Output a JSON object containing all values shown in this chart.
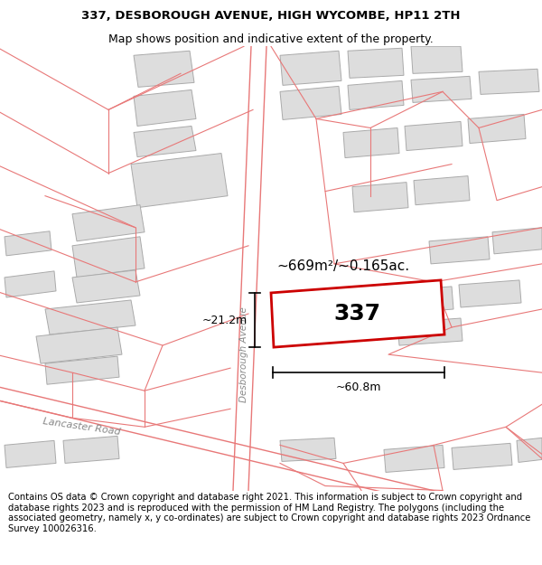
{
  "title_line1": "337, DESBOROUGH AVENUE, HIGH WYCOMBE, HP11 2TH",
  "title_line2": "Map shows position and indicative extent of the property.",
  "footer_text": "Contains OS data © Crown copyright and database right 2021. This information is subject to Crown copyright and database rights 2023 and is reproduced with the permission of HM Land Registry. The polygons (including the associated geometry, namely x, y co-ordinates) are subject to Crown copyright and database rights 2023 Ordnance Survey 100026316.",
  "map_bg": "#ffffff",
  "building_outline_color": "#aaaaaa",
  "building_fill_color": "#dddddd",
  "road_line_color": "#e87878",
  "plot_outline_color": "#cc0000",
  "plot_fill_color": "#ffffff",
  "area_text": "~669m²/~0.165ac.",
  "width_text": "~60.8m",
  "height_text": "~21.2m",
  "plot_label": "337",
  "road_label": "Desborough Avenue",
  "road2_label": "Lancaster Road",
  "title_fontsize": 9.5,
  "footer_fontsize": 7.2
}
